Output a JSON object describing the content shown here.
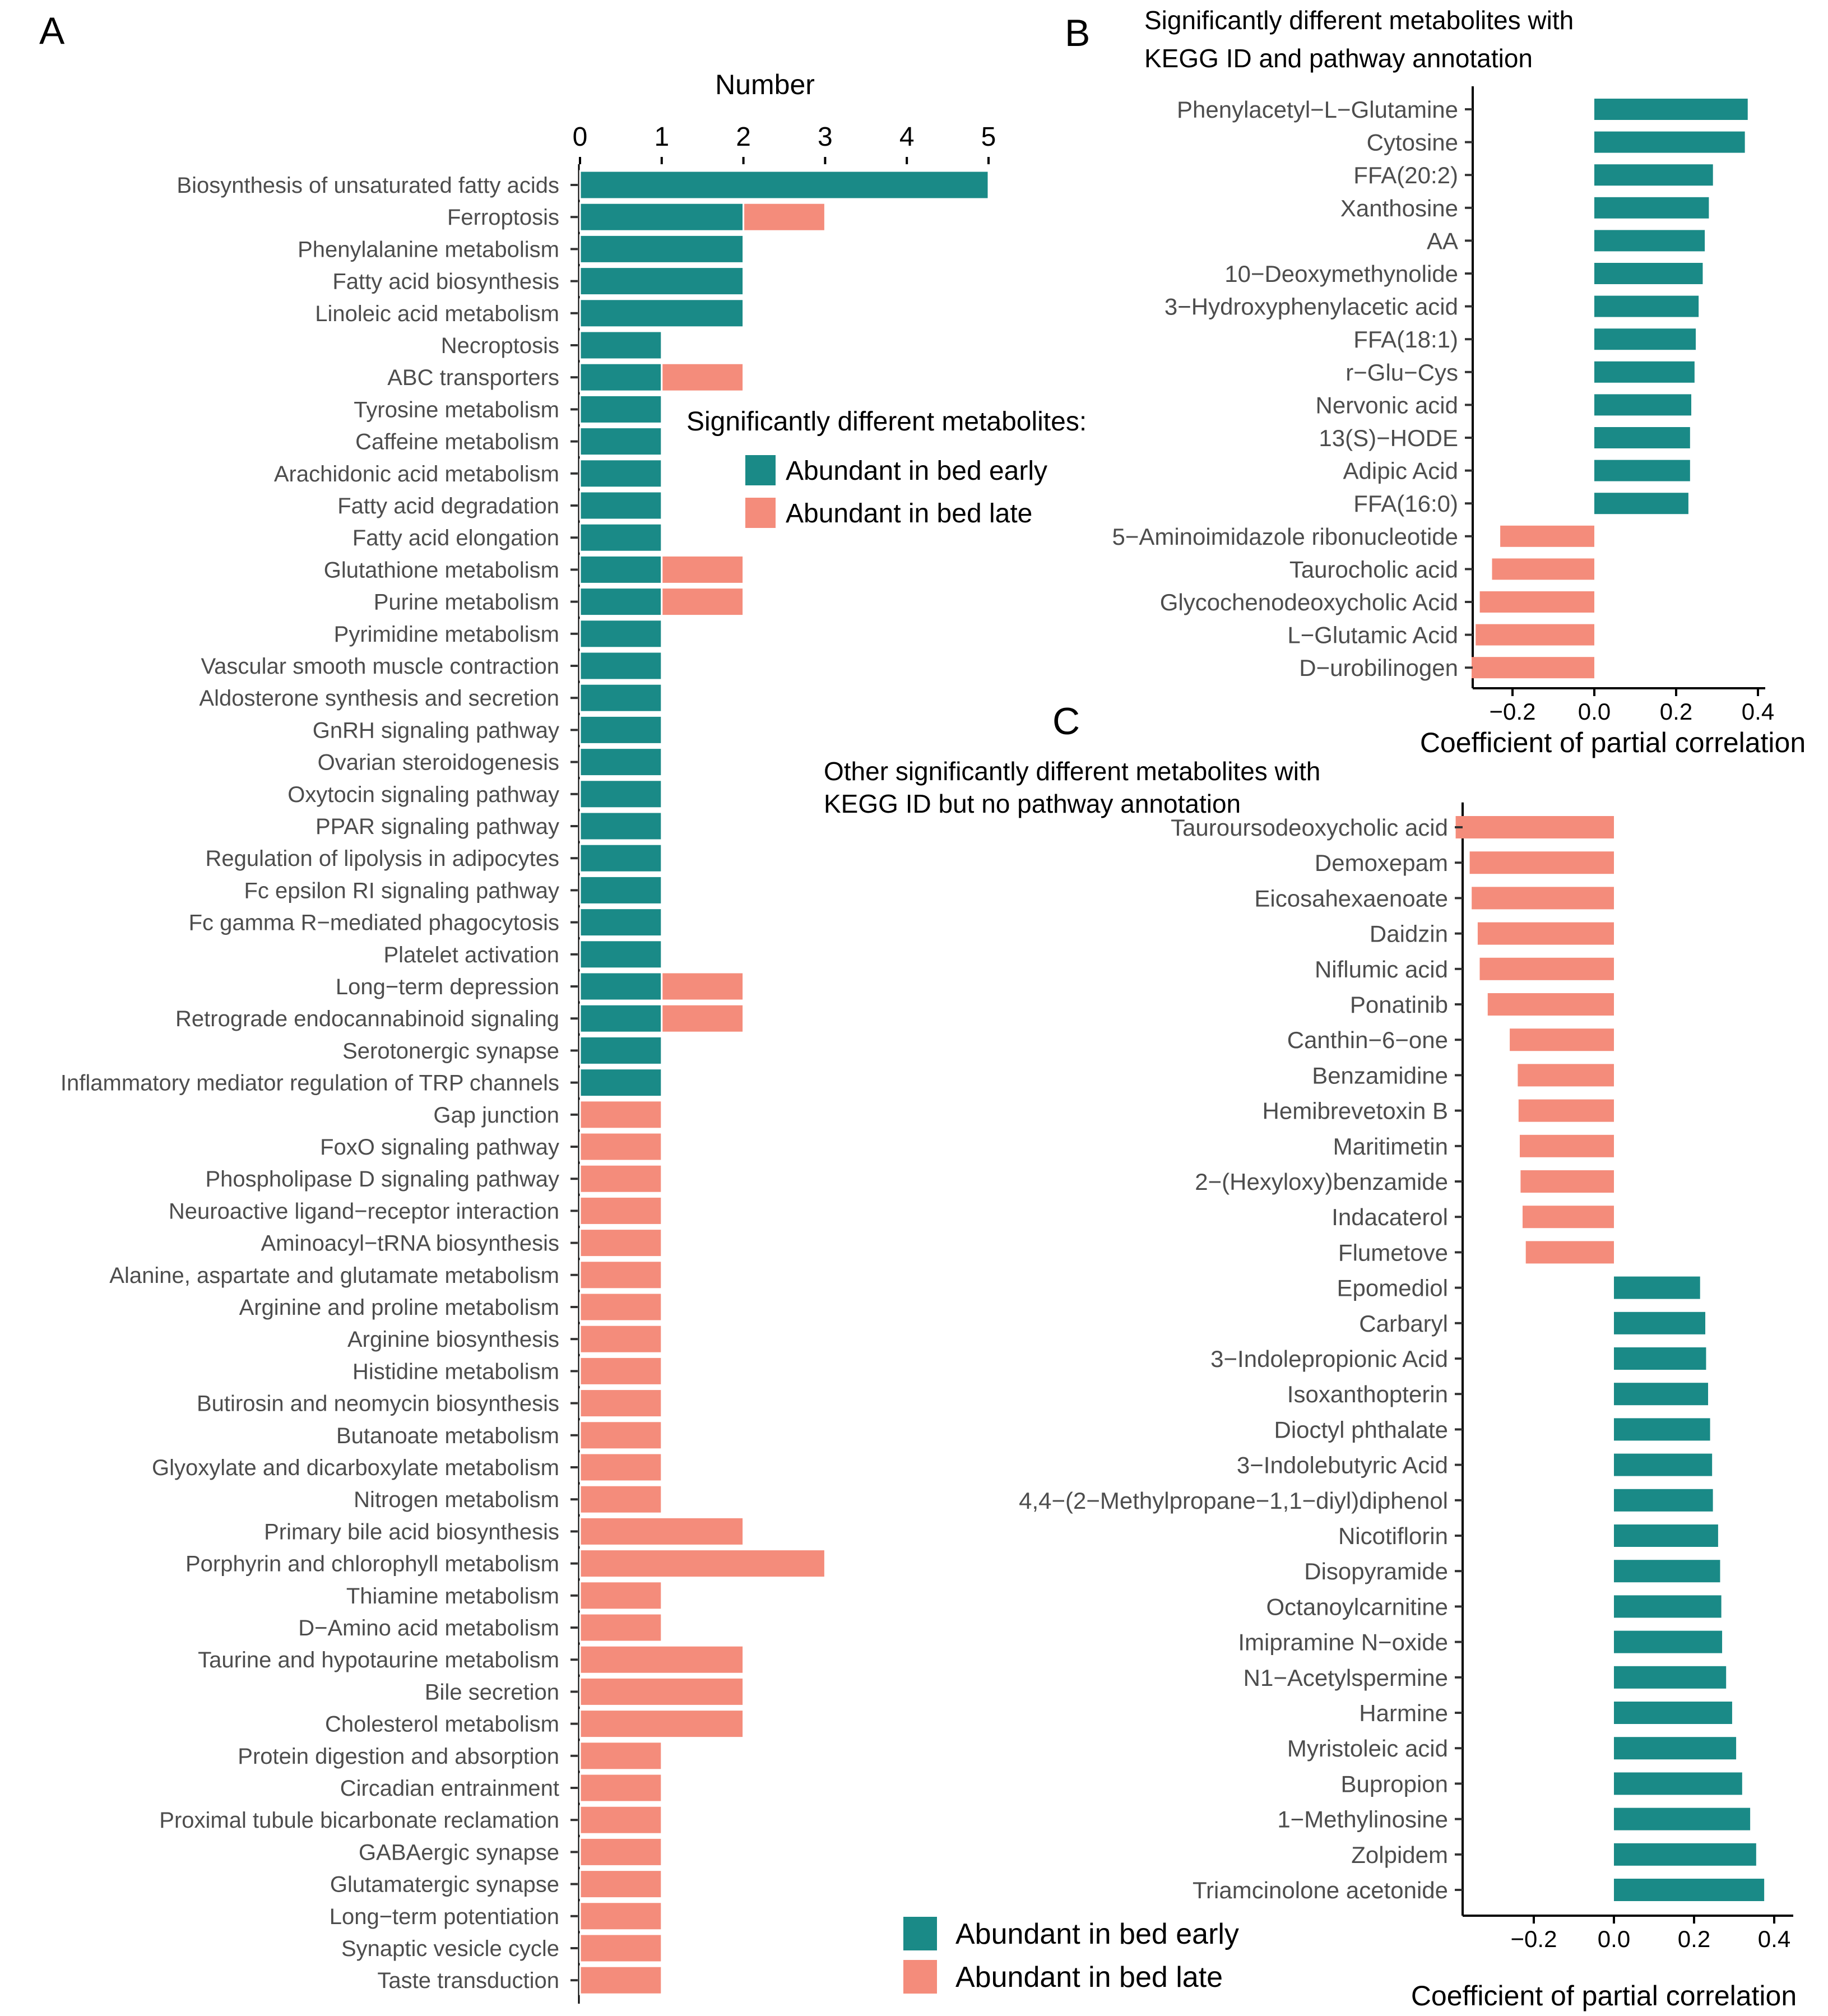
{
  "colors": {
    "early": "#1a8a87",
    "late": "#f48c7b",
    "axis": "#000000",
    "text": "#4d4d4d"
  },
  "legend": {
    "title": "Significantly different metabolites:",
    "early_label": "Abundant in bed early",
    "late_label": "Abundant in bed late"
  },
  "panel_a": {
    "letter": "A",
    "axis_title": "Number",
    "xticks": [
      "0",
      "1",
      "2",
      "3",
      "4",
      "5"
    ]
  },
  "panel_b": {
    "letter": "B",
    "title_lines": [
      "Significantly different metabolites with",
      "KEGG ID and pathway annotation"
    ],
    "axis_title": "Coefficient of partial correlation",
    "xticks": [
      "−0.2",
      "0.0",
      "0.2",
      "0.4"
    ]
  },
  "panel_c": {
    "letter": "C",
    "title_lines": [
      "Other significantly different metabolites with",
      "KEGG ID but no pathway annotation"
    ],
    "axis_title": "Coefficient of partial correlation",
    "xticks": [
      "−0.2",
      "0.0",
      "0.2",
      "0.4"
    ]
  },
  "chart_data": [
    {
      "type": "bar",
      "orientation": "horizontal",
      "stacked": true,
      "xlabel": "Number",
      "xlim": [
        0,
        5
      ],
      "legend": "right",
      "categories": [
        "Biosynthesis of unsaturated fatty acids",
        "Ferroptosis",
        "Phenylalanine metabolism",
        "Fatty acid biosynthesis",
        "Linoleic acid metabolism",
        "Necroptosis",
        "ABC transporters",
        "Tyrosine metabolism",
        "Caffeine metabolism",
        "Arachidonic acid metabolism",
        "Fatty acid degradation",
        "Fatty acid elongation",
        "Glutathione metabolism",
        "Purine metabolism",
        "Pyrimidine metabolism",
        "Vascular smooth muscle contraction",
        "Aldosterone synthesis and secretion",
        "GnRH signaling pathway",
        "Ovarian steroidogenesis",
        "Oxytocin signaling pathway",
        "PPAR signaling pathway",
        "Regulation of lipolysis in adipocytes",
        "Fc epsilon RI signaling pathway",
        "Fc gamma R−mediated phagocytosis",
        "Platelet activation",
        "Long−term depression",
        "Retrograde endocannabinoid signaling",
        "Serotonergic synapse",
        "Inflammatory mediator regulation of TRP channels",
        "Gap junction",
        "FoxO signaling pathway",
        "Phospholipase D signaling pathway",
        "Neuroactive ligand−receptor interaction",
        "Aminoacyl−tRNA biosynthesis",
        "Alanine, aspartate and glutamate metabolism",
        "Arginine and proline metabolism",
        "Arginine biosynthesis",
        "Histidine metabolism",
        "Butirosin and neomycin biosynthesis",
        "Butanoate metabolism",
        "Glyoxylate and dicarboxylate metabolism",
        "Nitrogen metabolism",
        "Primary bile acid biosynthesis",
        "Porphyrin and chlorophyll metabolism",
        "Thiamine metabolism",
        "D−Amino acid metabolism",
        "Taurine and hypotaurine metabolism",
        "Bile secretion",
        "Cholesterol metabolism",
        "Protein digestion and absorption",
        "Circadian entrainment",
        "Proximal tubule bicarbonate reclamation",
        "GABAergic synapse",
        "Glutamatergic synapse",
        "Long−term potentiation",
        "Synaptic vesicle cycle",
        "Taste transduction"
      ],
      "series": [
        {
          "name": "Abundant in bed early",
          "values": [
            5,
            2,
            2,
            2,
            2,
            1,
            1,
            1,
            1,
            1,
            1,
            1,
            1,
            1,
            1,
            1,
            1,
            1,
            1,
            1,
            1,
            1,
            1,
            1,
            1,
            1,
            1,
            1,
            1,
            0,
            0,
            0,
            0,
            0,
            0,
            0,
            0,
            0,
            0,
            0,
            0,
            0,
            0,
            0,
            0,
            0,
            0,
            0,
            0,
            0,
            0,
            0,
            0,
            0,
            0,
            0,
            0
          ]
        },
        {
          "name": "Abundant in bed late",
          "values": [
            0,
            1,
            0,
            0,
            0,
            0,
            1,
            0,
            0,
            0,
            0,
            0,
            1,
            1,
            0,
            0,
            0,
            0,
            0,
            0,
            0,
            0,
            0,
            0,
            0,
            1,
            1,
            0,
            0,
            1,
            1,
            1,
            1,
            1,
            1,
            1,
            1,
            1,
            1,
            1,
            1,
            1,
            2,
            3,
            1,
            1,
            2,
            2,
            2,
            1,
            1,
            1,
            1,
            1,
            1,
            1,
            1
          ]
        }
      ]
    },
    {
      "type": "bar",
      "orientation": "horizontal",
      "title": "Significantly different metabolites with KEGG ID and pathway annotation",
      "xlabel": "Coefficient of partial correlation",
      "xlim": [
        -0.3,
        0.4
      ],
      "categories": [
        "Phenylacetyl−L−Glutamine",
        "Cytosine",
        "FFA(20:2)",
        "Xanthosine",
        "AA",
        "10−Deoxymethynolide",
        "3−Hydroxyphenylacetic acid",
        "FFA(18:1)",
        "r−Glu−Cys",
        "Nervonic acid",
        "13(S)−HODE",
        "Adipic Acid",
        "FFA(16:0)",
        "5−Aminoimidazole ribonucleotide",
        "Taurocholic acid",
        "Glycochenodeoxycholic Acid",
        "L−Glutamic Acid",
        "D−urobilinogen"
      ],
      "values": [
        0.375,
        0.368,
        0.29,
        0.28,
        0.27,
        0.265,
        0.255,
        0.248,
        0.245,
        0.237,
        0.234,
        0.234,
        0.23,
        -0.23,
        -0.25,
        -0.28,
        -0.29,
        -0.3
      ],
      "groups": [
        "early",
        "early",
        "early",
        "early",
        "early",
        "early",
        "early",
        "early",
        "early",
        "early",
        "early",
        "early",
        "early",
        "late",
        "late",
        "late",
        "late",
        "late"
      ]
    },
    {
      "type": "bar",
      "orientation": "horizontal",
      "title": "Other significantly different metabolites with KEGG ID but no pathway annotation",
      "xlabel": "Coefficient of partial correlation",
      "xlim": [
        -0.4,
        0.4
      ],
      "categories": [
        "Tauroursodeoxycholic acid",
        "Demoxepam",
        "Eicosahexaenoate",
        "Daidzin",
        "Niflumic acid",
        "Ponatinib",
        "Canthin−6−one",
        "Benzamidine",
        "Hemibrevetoxin B",
        "Maritimetin",
        "2−(Hexyloxy)benzamide",
        "Indacaterol",
        "Flumetove",
        "Epomediol",
        "Carbaryl",
        "3−Indolepropionic Acid",
        "Isoxanthopterin",
        "Dioctyl phthalate",
        "3−Indolebutyric Acid",
        "4,4−(2−Methylpropane−1,1−diyl)diphenol",
        "Nicotiflorin",
        "Disopyramide",
        "Octanoylcarnitine",
        "Imipramine N−oxide",
        "N1−Acetylspermine",
        "Harmine",
        "Myristoleic acid",
        "Bupropion",
        "1−Methylinosine",
        "Zolpidem",
        "Triamcinolone acetonide"
      ],
      "values": [
        -0.395,
        -0.36,
        -0.355,
        -0.34,
        -0.335,
        -0.315,
        -0.26,
        -0.24,
        -0.238,
        -0.235,
        -0.233,
        -0.228,
        -0.22,
        0.215,
        0.228,
        0.23,
        0.235,
        0.24,
        0.245,
        0.247,
        0.26,
        0.265,
        0.268,
        0.27,
        0.28,
        0.295,
        0.305,
        0.32,
        0.34,
        0.355,
        0.375
      ],
      "groups": [
        "late",
        "late",
        "late",
        "late",
        "late",
        "late",
        "late",
        "late",
        "late",
        "late",
        "late",
        "late",
        "late",
        "early",
        "early",
        "early",
        "early",
        "early",
        "early",
        "early",
        "early",
        "early",
        "early",
        "early",
        "early",
        "early",
        "early",
        "early",
        "early",
        "early",
        "early"
      ]
    }
  ]
}
